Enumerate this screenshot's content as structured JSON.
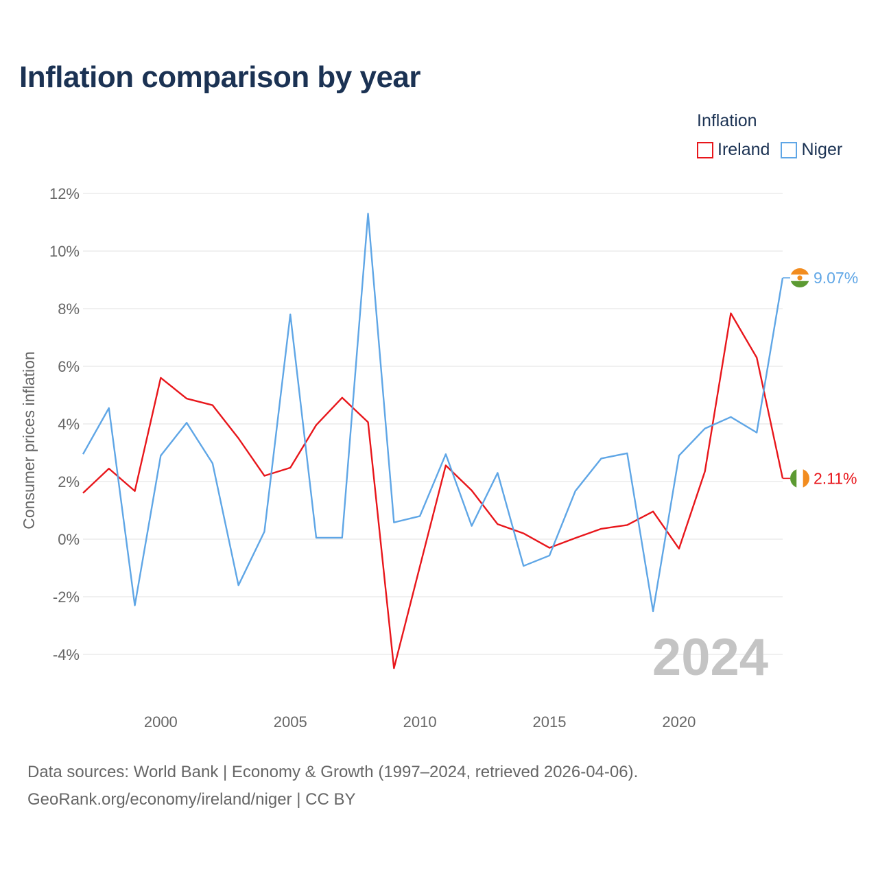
{
  "title": "Inflation comparison by year",
  "legend": {
    "title": "Inflation",
    "items": [
      {
        "label": "Ireland",
        "color": "#e8161b"
      },
      {
        "label": "Niger",
        "color": "#5fa6e6"
      }
    ]
  },
  "source": {
    "line1": "Data sources: World Bank | Economy & Growth (1997–2024, retrieved 2026-04-06).",
    "line2": "GeoRank.org/economy/ireland/niger | CC BY"
  },
  "chart_data": {
    "type": "line",
    "title": "Inflation comparison by year",
    "ylabel": "Consumer prices inflation",
    "xlabel": "",
    "year_watermark": "2024",
    "ylim": [
      -5.4,
      12.4
    ],
    "yticks": [
      -4,
      -2,
      0,
      2,
      4,
      6,
      8,
      10,
      12
    ],
    "ytick_labels": [
      "-4%",
      "-2%",
      "0%",
      "2%",
      "4%",
      "6%",
      "8%",
      "10%",
      "12%"
    ],
    "xlim": [
      1997,
      2024
    ],
    "xticks": [
      2000,
      2005,
      2010,
      2015,
      2020
    ],
    "xtick_labels": [
      "2000",
      "2005",
      "2010",
      "2015",
      "2020"
    ],
    "x": [
      1997,
      1998,
      1999,
      2000,
      2001,
      2002,
      2003,
      2004,
      2005,
      2006,
      2007,
      2008,
      2009,
      2010,
      2011,
      2012,
      2013,
      2014,
      2015,
      2016,
      2017,
      2018,
      2019,
      2020,
      2021,
      2022,
      2023,
      2024
    ],
    "series": [
      {
        "name": "Ireland",
        "color": "#e8161b",
        "end_label": "2.11%",
        "values": [
          1.6,
          2.45,
          1.67,
          5.6,
          4.88,
          4.65,
          3.5,
          2.2,
          2.48,
          3.96,
          4.91,
          4.06,
          -4.48,
          -0.95,
          2.56,
          1.69,
          0.52,
          0.2,
          -0.3,
          0.04,
          0.36,
          0.49,
          0.96,
          -0.33,
          2.35,
          7.84,
          6.3,
          2.11
        ]
      },
      {
        "name": "Niger",
        "color": "#5fa6e6",
        "end_label": "9.07%",
        "values": [
          2.95,
          4.55,
          -2.3,
          2.9,
          4.04,
          2.63,
          -1.6,
          0.26,
          7.8,
          0.05,
          0.05,
          11.3,
          0.58,
          0.8,
          2.95,
          0.46,
          2.3,
          -0.93,
          -0.57,
          1.67,
          2.8,
          2.98,
          -2.5,
          2.9,
          3.84,
          4.24,
          3.7,
          9.07
        ]
      }
    ]
  }
}
